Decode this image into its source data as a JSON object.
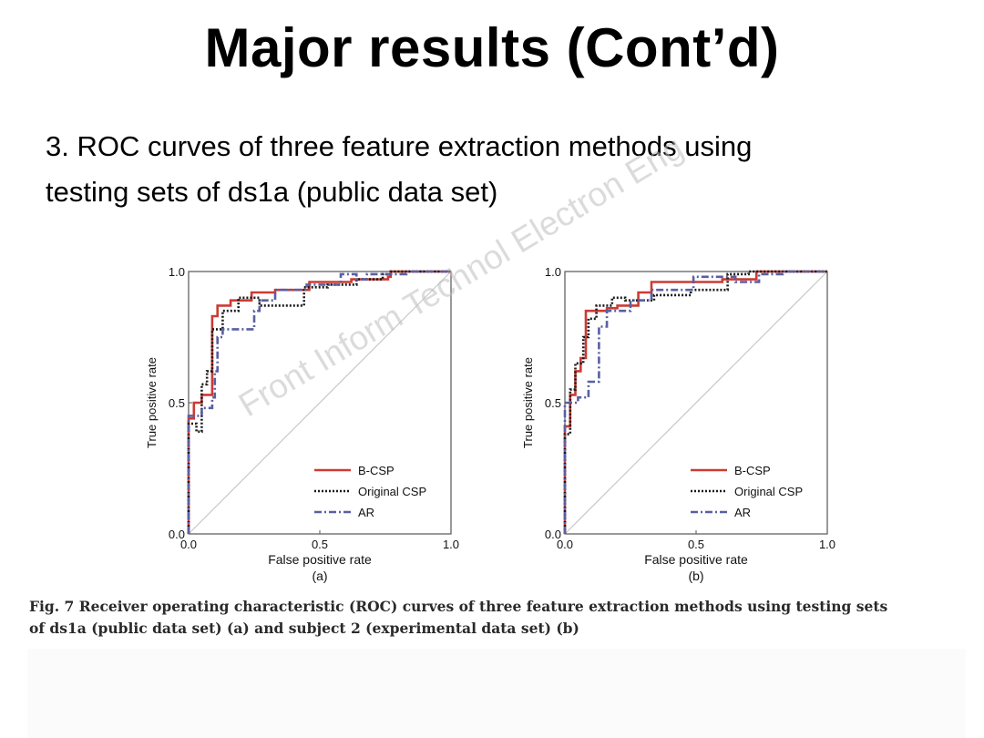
{
  "slide": {
    "title": "Major results (Cont’d)",
    "bullet_line1": "3. ROC curves of three feature extraction methods using",
    "bullet_line2": "testing sets of ds1a (public data set)"
  },
  "watermark": "Front Inform Technol Electron Eng",
  "caption": {
    "line1_bold": "Fig. 7 Receiver operating characteristic (ROC) curves of three feature extraction methods using testing sets",
    "line2_bold": "of ds1a (public data set) (a) and subject 2 (experimental data set) (b)"
  },
  "colors": {
    "bcsp": "#cc3b35",
    "original_csp": "#1a1a1a",
    "ar": "#5a5fa3",
    "diagonal": "#c8c8c8",
    "axes": "#555555"
  },
  "chart_data": [
    {
      "type": "line",
      "panel_label": "(a)",
      "xlabel": "False positive rate",
      "ylabel": "True positive rate",
      "xlim": [
        0,
        1
      ],
      "ylim": [
        0,
        1
      ],
      "xticks": [
        "0.0",
        "0.5",
        "1.0"
      ],
      "yticks": [
        "0.0",
        "0.5",
        "1.0"
      ],
      "legend_position": "lower-right",
      "series": [
        {
          "name": "B-CSP",
          "style": "solid",
          "points": [
            [
              0,
              0
            ],
            [
              0,
              0.44
            ],
            [
              0.02,
              0.44
            ],
            [
              0.02,
              0.5
            ],
            [
              0.05,
              0.5
            ],
            [
              0.05,
              0.53
            ],
            [
              0.09,
              0.53
            ],
            [
              0.09,
              0.83
            ],
            [
              0.11,
              0.83
            ],
            [
              0.11,
              0.87
            ],
            [
              0.16,
              0.87
            ],
            [
              0.16,
              0.89
            ],
            [
              0.24,
              0.89
            ],
            [
              0.24,
              0.92
            ],
            [
              0.33,
              0.92
            ],
            [
              0.33,
              0.93
            ],
            [
              0.46,
              0.93
            ],
            [
              0.46,
              0.96
            ],
            [
              0.62,
              0.96
            ],
            [
              0.62,
              0.97
            ],
            [
              0.76,
              0.97
            ],
            [
              0.76,
              0.98
            ],
            [
              0.77,
              0.98
            ],
            [
              0.77,
              1
            ],
            [
              1,
              1
            ]
          ]
        },
        {
          "name": "Original CSP",
          "style": "dotted",
          "points": [
            [
              0,
              0
            ],
            [
              0,
              0.42
            ],
            [
              0.03,
              0.42
            ],
            [
              0.03,
              0.39
            ],
            [
              0.05,
              0.39
            ],
            [
              0.05,
              0.57
            ],
            [
              0.07,
              0.57
            ],
            [
              0.07,
              0.62
            ],
            [
              0.09,
              0.62
            ],
            [
              0.09,
              0.78
            ],
            [
              0.13,
              0.78
            ],
            [
              0.13,
              0.85
            ],
            [
              0.19,
              0.85
            ],
            [
              0.19,
              0.9
            ],
            [
              0.27,
              0.9
            ],
            [
              0.27,
              0.87
            ],
            [
              0.44,
              0.87
            ],
            [
              0.44,
              0.94
            ],
            [
              0.53,
              0.94
            ],
            [
              0.53,
              0.95
            ],
            [
              0.64,
              0.95
            ],
            [
              0.64,
              0.97
            ],
            [
              0.74,
              0.97
            ],
            [
              0.74,
              0.99
            ],
            [
              0.77,
              0.99
            ],
            [
              0.77,
              1
            ],
            [
              1,
              1
            ]
          ]
        },
        {
          "name": "AR",
          "style": "dashdot",
          "points": [
            [
              0,
              0
            ],
            [
              0,
              0.45
            ],
            [
              0.05,
              0.45
            ],
            [
              0.05,
              0.48
            ],
            [
              0.09,
              0.48
            ],
            [
              0.09,
              0.52
            ],
            [
              0.1,
              0.52
            ],
            [
              0.1,
              0.62
            ],
            [
              0.11,
              0.62
            ],
            [
              0.11,
              0.75
            ],
            [
              0.13,
              0.75
            ],
            [
              0.13,
              0.78
            ],
            [
              0.25,
              0.78
            ],
            [
              0.25,
              0.85
            ],
            [
              0.27,
              0.85
            ],
            [
              0.27,
              0.89
            ],
            [
              0.33,
              0.89
            ],
            [
              0.33,
              0.93
            ],
            [
              0.45,
              0.93
            ],
            [
              0.45,
              0.95
            ],
            [
              0.58,
              0.95
            ],
            [
              0.58,
              0.99
            ],
            [
              0.64,
              0.99
            ],
            [
              0.64,
              0.97
            ],
            [
              0.68,
              0.97
            ],
            [
              0.68,
              0.99
            ],
            [
              0.83,
              0.99
            ],
            [
              0.83,
              1
            ],
            [
              1,
              1
            ]
          ]
        }
      ]
    },
    {
      "type": "line",
      "panel_label": "(b)",
      "xlabel": "False positive rate",
      "ylabel": "True positive rate",
      "xlim": [
        0,
        1
      ],
      "ylim": [
        0,
        1
      ],
      "xticks": [
        "0.0",
        "0.5",
        "1.0"
      ],
      "yticks": [
        "0.0",
        "0.5",
        "1.0"
      ],
      "legend_position": "lower-right",
      "series": [
        {
          "name": "B-CSP",
          "style": "solid",
          "points": [
            [
              0,
              0
            ],
            [
              0,
              0.41
            ],
            [
              0.02,
              0.41
            ],
            [
              0.02,
              0.53
            ],
            [
              0.04,
              0.53
            ],
            [
              0.04,
              0.62
            ],
            [
              0.06,
              0.62
            ],
            [
              0.06,
              0.67
            ],
            [
              0.08,
              0.67
            ],
            [
              0.08,
              0.85
            ],
            [
              0.16,
              0.85
            ],
            [
              0.16,
              0.86
            ],
            [
              0.2,
              0.86
            ],
            [
              0.2,
              0.87
            ],
            [
              0.28,
              0.87
            ],
            [
              0.28,
              0.92
            ],
            [
              0.33,
              0.92
            ],
            [
              0.33,
              0.96
            ],
            [
              0.6,
              0.96
            ],
            [
              0.6,
              0.97
            ],
            [
              0.73,
              0.97
            ],
            [
              0.73,
              1
            ],
            [
              1,
              1
            ]
          ]
        },
        {
          "name": "Original CSP",
          "style": "dotted",
          "points": [
            [
              0,
              0
            ],
            [
              0,
              0.38
            ],
            [
              0.02,
              0.38
            ],
            [
              0.02,
              0.55
            ],
            [
              0.04,
              0.55
            ],
            [
              0.04,
              0.65
            ],
            [
              0.07,
              0.65
            ],
            [
              0.07,
              0.75
            ],
            [
              0.09,
              0.75
            ],
            [
              0.09,
              0.82
            ],
            [
              0.12,
              0.82
            ],
            [
              0.12,
              0.87
            ],
            [
              0.18,
              0.87
            ],
            [
              0.18,
              0.9
            ],
            [
              0.23,
              0.9
            ],
            [
              0.23,
              0.89
            ],
            [
              0.34,
              0.89
            ],
            [
              0.34,
              0.91
            ],
            [
              0.48,
              0.91
            ],
            [
              0.48,
              0.93
            ],
            [
              0.62,
              0.93
            ],
            [
              0.62,
              0.99
            ],
            [
              0.7,
              0.99
            ],
            [
              0.7,
              1
            ],
            [
              1,
              1
            ]
          ]
        },
        {
          "name": "AR",
          "style": "dashdot",
          "points": [
            [
              0,
              0
            ],
            [
              0,
              0.5
            ],
            [
              0.05,
              0.5
            ],
            [
              0.05,
              0.52
            ],
            [
              0.09,
              0.52
            ],
            [
              0.09,
              0.58
            ],
            [
              0.13,
              0.58
            ],
            [
              0.13,
              0.79
            ],
            [
              0.16,
              0.79
            ],
            [
              0.16,
              0.85
            ],
            [
              0.25,
              0.85
            ],
            [
              0.25,
              0.89
            ],
            [
              0.33,
              0.89
            ],
            [
              0.33,
              0.93
            ],
            [
              0.49,
              0.93
            ],
            [
              0.49,
              0.98
            ],
            [
              0.65,
              0.98
            ],
            [
              0.65,
              0.96
            ],
            [
              0.74,
              0.96
            ],
            [
              0.74,
              0.99
            ],
            [
              0.83,
              0.99
            ],
            [
              0.83,
              1
            ],
            [
              1,
              1
            ]
          ]
        }
      ]
    }
  ]
}
